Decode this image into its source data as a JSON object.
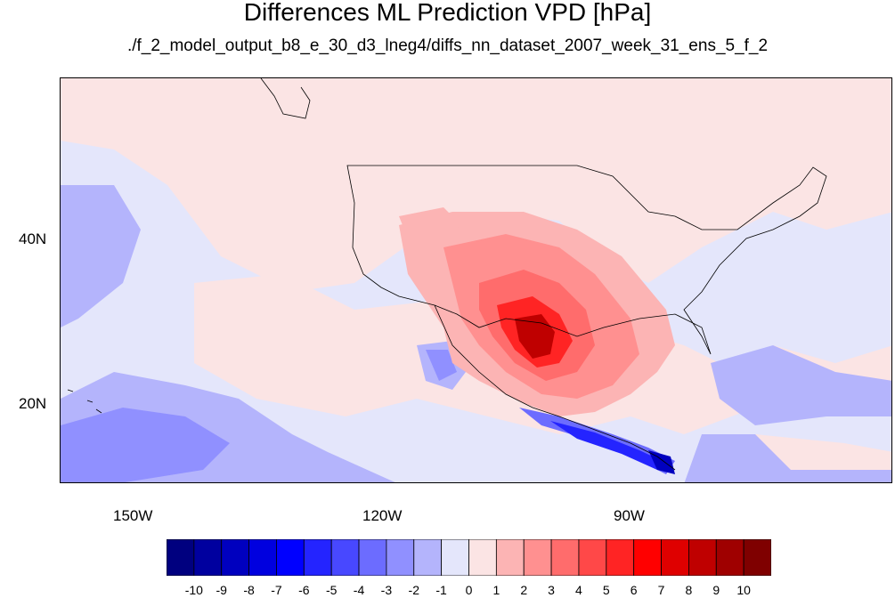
{
  "title": "Differences ML Prediction VPD [hPa]",
  "subtitle": "./f_2_model_output_b8_e_30_d3_lneg4/diffs_nn_dataset_2007_week_31_ens_5_f_2",
  "axes": {
    "lat_labels": [
      "40N",
      "20N"
    ],
    "lon_labels": [
      "150W",
      "120W",
      "90W"
    ]
  },
  "colorbar": {
    "labels": [
      "-10",
      "-9",
      "-8",
      "-7",
      "-6",
      "-5",
      "-4",
      "-3",
      "-2",
      "-1",
      "0",
      "1",
      "2",
      "3",
      "4",
      "5",
      "6",
      "7",
      "8",
      "9",
      "10"
    ],
    "colors": [
      "#00007f",
      "#00009f",
      "#0000bf",
      "#0000df",
      "#0000ff",
      "#2424ff",
      "#4848ff",
      "#6c6cff",
      "#9090ff",
      "#b4b4fc",
      "#e4e6fb",
      "#fbe4e4",
      "#fcb4b4",
      "#ff9090",
      "#ff6c6c",
      "#ff4848",
      "#ff2424",
      "#ff0000",
      "#df0000",
      "#bf0000",
      "#9f0000",
      "#7f0000"
    ]
  },
  "colors": {
    "zero_negative": "#e4e6fb",
    "zero_positive": "#fbe4e4",
    "light_red": "#fcb4b4",
    "red": "#ff6c6c",
    "dark_red": "#bf0000",
    "light_blue": "#b4b4fc",
    "blue": "#6c6cff",
    "dark_blue": "#0000bf"
  }
}
